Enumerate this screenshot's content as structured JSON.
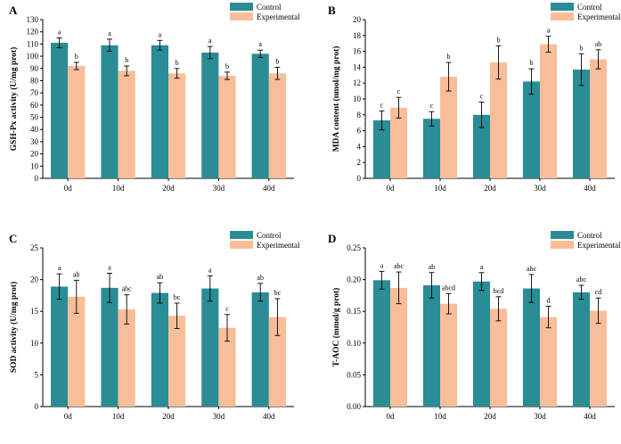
{
  "colors": {
    "control": "#2a8c95",
    "experimental": "#f8be99",
    "errorbar": "#000000"
  },
  "chart_data": [
    {
      "type": "bar",
      "panel": "A",
      "ylabel": "GSH-Px activity (U/mg prot)",
      "categories": [
        "0d",
        "10d",
        "20d",
        "30d",
        "40d"
      ],
      "ylim": [
        0,
        130
      ],
      "yticks": [
        0,
        10,
        20,
        30,
        40,
        50,
        60,
        70,
        80,
        90,
        100,
        110,
        120,
        130
      ],
      "ytick_labels": [
        "0",
        "10",
        "20",
        "30",
        "40",
        "50",
        "60",
        "70",
        "80",
        "90",
        "100",
        "110",
        "120",
        "130"
      ],
      "legend": "top-right",
      "series": [
        {
          "name": "Control",
          "color": "#2a8c95",
          "values": [
            111,
            109,
            109,
            103,
            102
          ],
          "errors": [
            4,
            5,
            4,
            5,
            3
          ],
          "letters": [
            "a",
            "a",
            "a",
            "a",
            "a"
          ]
        },
        {
          "name": "Experimental",
          "color": "#f8be99",
          "values": [
            92,
            88,
            86,
            84,
            86
          ],
          "errors": [
            3,
            4,
            4,
            3,
            5
          ],
          "letters": [
            "b",
            "b",
            "b",
            "b",
            "b"
          ]
        }
      ]
    },
    {
      "type": "bar",
      "panel": "B",
      "ylabel": "MDA content (nmol/mg prot)",
      "categories": [
        "0d",
        "10d",
        "20d",
        "30d",
        "40d"
      ],
      "ylim": [
        0,
        20
      ],
      "yticks": [
        0,
        2,
        4,
        6,
        8,
        10,
        12,
        14,
        16,
        18,
        20
      ],
      "ytick_labels": [
        "0",
        "2",
        "4",
        "6",
        "8",
        "10",
        "12",
        "14",
        "16",
        "18",
        "20"
      ],
      "legend": "top-right",
      "series": [
        {
          "name": "Control",
          "color": "#2a8c95",
          "values": [
            7.3,
            7.5,
            8.0,
            12.2,
            13.7
          ],
          "errors": [
            1.2,
            0.9,
            1.6,
            1.6,
            2.0
          ],
          "letters": [
            "c",
            "c",
            "c",
            "b",
            "b"
          ]
        },
        {
          "name": "Experimental",
          "color": "#f8be99",
          "values": [
            8.9,
            12.8,
            14.6,
            16.9,
            15.0
          ],
          "errors": [
            1.3,
            1.8,
            2.1,
            1.0,
            1.2
          ],
          "letters": [
            "c",
            "b",
            "b",
            "a",
            "ab"
          ]
        }
      ]
    },
    {
      "type": "bar",
      "panel": "C",
      "ylabel": "SOD activity (U/mg prot)",
      "categories": [
        "0d",
        "10d",
        "20d",
        "30d",
        "40d"
      ],
      "ylim": [
        0,
        25
      ],
      "yticks": [
        0,
        5,
        10,
        15,
        20,
        25
      ],
      "ytick_labels": [
        "0",
        "5",
        "10",
        "15",
        "20",
        "25"
      ],
      "legend": "top-right",
      "series": [
        {
          "name": "Control",
          "color": "#2a8c95",
          "values": [
            18.9,
            18.7,
            17.9,
            18.6,
            18.0
          ],
          "errors": [
            2.0,
            2.3,
            1.6,
            2.0,
            1.4
          ],
          "letters": [
            "a",
            "a",
            "ab",
            "a",
            "ab"
          ]
        },
        {
          "name": "Experimental",
          "color": "#f8be99",
          "values": [
            17.3,
            15.3,
            14.3,
            12.4,
            14.1
          ],
          "errors": [
            2.6,
            2.3,
            2.0,
            2.1,
            2.9
          ],
          "letters": [
            "ab",
            "abc",
            "bc",
            "c",
            "bc"
          ]
        }
      ]
    },
    {
      "type": "bar",
      "panel": "D",
      "ylabel": "T-AOC (mmol/g prot)",
      "categories": [
        "0d",
        "10d",
        "20d",
        "30d",
        "40d"
      ],
      "ylim": [
        0,
        0.25
      ],
      "yticks": [
        0,
        0.05,
        0.1,
        0.15,
        0.2,
        0.25
      ],
      "ytick_labels": [
        "0.00",
        "0.05",
        "0.10",
        "0.15",
        "0.20",
        "0.25"
      ],
      "legend": "top-right",
      "series": [
        {
          "name": "Control",
          "color": "#2a8c95",
          "values": [
            0.199,
            0.191,
            0.197,
            0.186,
            0.18
          ],
          "errors": [
            0.014,
            0.02,
            0.014,
            0.022,
            0.011
          ],
          "letters": [
            "a",
            "ab",
            "a",
            "abc",
            "abc"
          ]
        },
        {
          "name": "Experimental",
          "color": "#f8be99",
          "values": [
            0.187,
            0.162,
            0.154,
            0.141,
            0.151
          ],
          "errors": [
            0.025,
            0.016,
            0.019,
            0.017,
            0.02
          ],
          "letters": [
            "abc",
            "abcd",
            "bcd",
            "d",
            "cd"
          ]
        }
      ]
    }
  ]
}
